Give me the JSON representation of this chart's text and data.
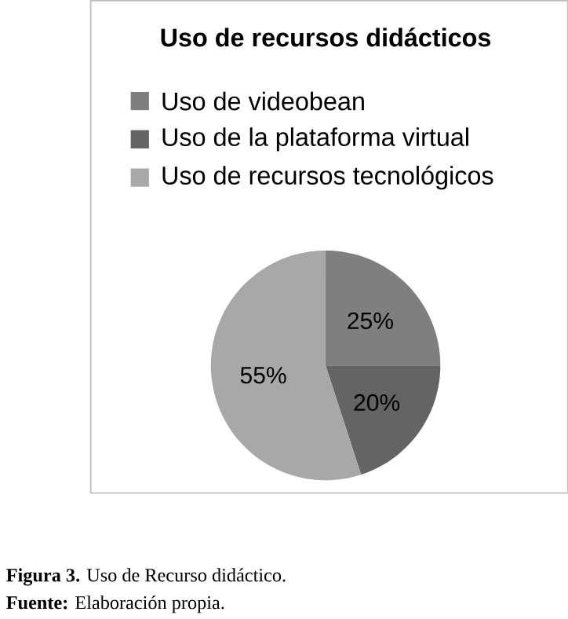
{
  "chart_data": {
    "type": "pie",
    "title": "Uso de recursos didácticos",
    "categories": [
      "Uso de videobean",
      "Uso de la plataforma virtual",
      "Uso de recursos tecnológicos"
    ],
    "values": [
      25,
      20,
      55
    ],
    "value_labels": [
      "25%",
      "20%",
      "55%"
    ],
    "colors": [
      "#7f7f7f",
      "#646464",
      "#a8a8a8"
    ],
    "legend": "top left",
    "annotations": [
      "**Figura 3.** Uso de Recurso didáctico.",
      "**Fuente:** Elaboración propia."
    ]
  }
}
